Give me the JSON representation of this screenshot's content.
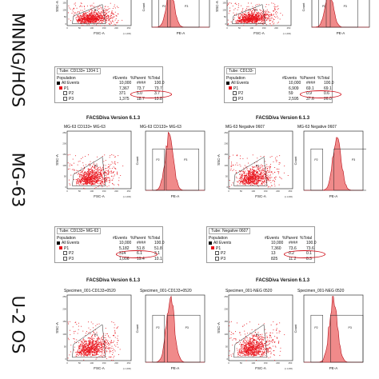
{
  "rows": [
    {
      "label": "MNNG/HOS"
    },
    {
      "label": "MG-63"
    },
    {
      "label": "U-2 OS"
    }
  ],
  "version_label": "FACSDiva Version 6.1.3",
  "axis": {
    "fsc": "FSC-A",
    "ssc": "SSC-A",
    "pe": "PE-A",
    "count": "Count",
    "scatter_ticks_y": [
      "250",
      "200",
      "150",
      "100",
      "50",
      "0"
    ],
    "scatter_ticks_x": [
      "0",
      "50",
      "100",
      "150",
      "200",
      "250"
    ],
    "scale_note": "(x 1,000)"
  },
  "plot_titles": {
    "mg63_left_scatter": "MG-63 CD133+ MG-63",
    "mg63_left_hist": "MG-63 CD133+ MG-63",
    "mg63_right_scatter": "MG-63 Negative 0607",
    "mg63_right_hist": "MG-63 Negative 0607",
    "u2os_left_scatter": "Specimen_001-CD133+0520",
    "u2os_left_hist": "Specimen_001-CD133+0520",
    "u2os_right_scatter": "Specimen_001-NEG 0520",
    "u2os_right_hist": "Specimen_001-NEG 0520"
  },
  "gate_labels": {
    "p1": "P1",
    "p2": "P2",
    "p3": "P3"
  },
  "tables": {
    "hos_left": {
      "tube": "Tube: CD133+ 1204 1",
      "headers": [
        "Population",
        "#Events",
        "%Parent",
        "%Total"
      ],
      "rows": [
        {
          "name": "All Events",
          "events": "10,000",
          "parent": "####",
          "total": "100.0"
        },
        {
          "name": "P1",
          "events": "7,367",
          "parent": "73.7",
          "total": "73.7"
        },
        {
          "name": "P2",
          "events": "371",
          "parent": "5.0",
          "total": "3.7"
        },
        {
          "name": "P3",
          "events": "1,375",
          "parent": "18.7",
          "total": "13.8"
        }
      ]
    },
    "hos_right": {
      "tube": "Tube: CD133-",
      "headers": [
        "Population",
        "#Events",
        "%Parent",
        "%Total"
      ],
      "rows": [
        {
          "name": "All Events",
          "events": "10,000",
          "parent": "####",
          "total": "100.0"
        },
        {
          "name": "P1",
          "events": "6,909",
          "parent": "69.1",
          "total": "69.1"
        },
        {
          "name": "P2",
          "events": "59",
          "parent": "0.9",
          "total": "0.6"
        },
        {
          "name": "P3",
          "events": "2,595",
          "parent": "37.6",
          "total": "26.0"
        }
      ]
    },
    "mg63_left": {
      "tube": "Tube: CD133+ MG-63",
      "headers": [
        "Population",
        "#Events",
        "%Parent",
        "%Total"
      ],
      "rows": [
        {
          "name": "All Events",
          "events": "10,000",
          "parent": "####",
          "total": "100.0"
        },
        {
          "name": "P1",
          "events": "5,182",
          "parent": "51.8",
          "total": "51.8"
        },
        {
          "name": "P2",
          "events": "314",
          "parent": "6.1",
          "total": "3.1"
        },
        {
          "name": "P3",
          "events": "1,006",
          "parent": "19.4",
          "total": "10.1"
        }
      ]
    },
    "mg63_right": {
      "tube": "Tube: Negative 0607",
      "headers": [
        "Population",
        "#Events",
        "%Parent",
        "%Total"
      ],
      "rows": [
        {
          "name": "All Events",
          "events": "10,000",
          "parent": "####",
          "total": "100.0"
        },
        {
          "name": "P1",
          "events": "7,360",
          "parent": "73.6",
          "total": "73.6"
        },
        {
          "name": "P2",
          "events": "13",
          "parent": "0.2",
          "total": "0.1"
        },
        {
          "name": "P3",
          "events": "825",
          "parent": "11.2",
          "total": "8.3"
        }
      ]
    }
  },
  "colors": {
    "events": "#e8141c",
    "hist_fill": "#f08a8a",
    "hist_line": "#b8101a",
    "highlight": "#d0101a",
    "all_events": "#000000",
    "p1": "#e8141c",
    "p2": "#1a1aa0",
    "p3": "#1a9a1a"
  },
  "chart_data": [
    {
      "type": "scatter",
      "panel": "MNNG/HOS CD133+",
      "xlabel": "FSC-A",
      "ylabel": "SSC-A",
      "xlim": [
        0,
        262
      ],
      "ylim": [
        0,
        262
      ],
      "gate": "P1"
    },
    {
      "type": "bar",
      "panel": "MNNG/HOS CD133+ histogram",
      "xlabel": "PE-A",
      "ylabel": "Count",
      "gates": [
        "P2",
        "P3"
      ],
      "histogram_peak_fraction": 0.32
    },
    {
      "type": "scatter",
      "panel": "MNNG/HOS CD133-",
      "xlabel": "FSC-A",
      "ylabel": "SSC-A",
      "xlim": [
        0,
        262
      ],
      "ylim": [
        0,
        262
      ],
      "gate": "P1"
    },
    {
      "type": "bar",
      "panel": "MNNG/HOS CD133- histogram",
      "xlabel": "PE-A",
      "ylabel": "Count",
      "gates": [
        "P2",
        "P3"
      ],
      "histogram_peak_fraction": 0.3
    },
    {
      "type": "scatter",
      "panel": "MG-63 CD133+ MG-63",
      "xlabel": "FSC-A",
      "ylabel": "SSC-A",
      "xlim": [
        0,
        262
      ],
      "ylim": [
        0,
        262
      ],
      "gate": "P1"
    },
    {
      "type": "bar",
      "panel": "MG-63 CD133+ MG-63 histogram",
      "xlabel": "PE-A",
      "ylabel": "Count",
      "gates": [
        "P2",
        "P3"
      ],
      "histogram_peak_fraction": 0.4
    },
    {
      "type": "scatter",
      "panel": "MG-63 Negative 0607",
      "xlabel": "FSC-A",
      "ylabel": "SSC-A",
      "xlim": [
        0,
        262
      ],
      "ylim": [
        0,
        262
      ],
      "gate": "P1"
    },
    {
      "type": "bar",
      "panel": "MG-63 Negative 0607 histogram",
      "xlabel": "PE-A",
      "ylabel": "Count",
      "gates": [
        "P2",
        "P3"
      ],
      "histogram_peak_fraction": 0.56
    },
    {
      "type": "scatter",
      "panel": "Specimen_001-CD133+0520",
      "xlabel": "FSC-A",
      "ylabel": "SSC-A",
      "xlim": [
        0,
        262
      ],
      "ylim": [
        0,
        262
      ],
      "gate": "P1"
    },
    {
      "type": "bar",
      "panel": "Specimen_001-CD133+0520 histogram",
      "xlabel": "PE-A",
      "ylabel": "Count",
      "gates": [
        "P2",
        "P3"
      ],
      "histogram_peak_fraction": 0.42
    },
    {
      "type": "scatter",
      "panel": "Specimen_001-NEG 0520",
      "xlabel": "FSC-A",
      "ylabel": "SSC-A",
      "xlim": [
        0,
        262
      ],
      "ylim": [
        0,
        262
      ],
      "gate": "P1"
    },
    {
      "type": "bar",
      "panel": "Specimen_001-NEG 0520 histogram",
      "xlabel": "PE-A",
      "ylabel": "Count",
      "gates": [
        "P2",
        "P3"
      ],
      "histogram_peak_fraction": 0.5
    }
  ]
}
